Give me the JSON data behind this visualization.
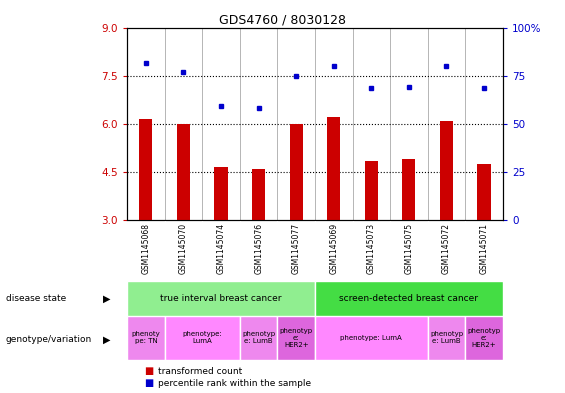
{
  "title": "GDS4760 / 8030128",
  "samples": [
    "GSM1145068",
    "GSM1145070",
    "GSM1145074",
    "GSM1145076",
    "GSM1145077",
    "GSM1145069",
    "GSM1145073",
    "GSM1145075",
    "GSM1145072",
    "GSM1145071"
  ],
  "bar_values": [
    6.15,
    6.0,
    4.65,
    4.6,
    6.0,
    6.2,
    4.85,
    4.9,
    6.1,
    4.75
  ],
  "dot_values": [
    7.9,
    7.6,
    6.55,
    6.5,
    7.5,
    7.8,
    7.1,
    7.15,
    7.8,
    7.1
  ],
  "ylim": [
    3,
    9
  ],
  "yticks": [
    3,
    4.5,
    6,
    7.5,
    9
  ],
  "y2ticks": [
    0,
    25,
    50,
    75,
    100
  ],
  "bar_color": "#CC0000",
  "dot_color": "#0000CC",
  "disease_state_row": [
    {
      "label": "true interval breast cancer",
      "color": "#90EE90",
      "span": [
        0,
        5
      ]
    },
    {
      "label": "screen-detected breast cancer",
      "color": "#44DD44",
      "span": [
        5,
        10
      ]
    }
  ],
  "genotype_row": [
    {
      "label": "phenoty\npe: TN",
      "color": "#EE88EE",
      "span": [
        0,
        1
      ]
    },
    {
      "label": "phenotype:\nLumA",
      "color": "#FF88FF",
      "span": [
        1,
        3
      ]
    },
    {
      "label": "phenotyp\ne: LumB",
      "color": "#EE88EE",
      "span": [
        3,
        4
      ]
    },
    {
      "label": "phenotyp\ne:\nHER2+",
      "color": "#DD66DD",
      "span": [
        4,
        5
      ]
    },
    {
      "label": "phenotype: LumA",
      "color": "#FF88FF",
      "span": [
        5,
        8
      ]
    },
    {
      "label": "phenotyp\ne: LumB",
      "color": "#EE88EE",
      "span": [
        8,
        9
      ]
    },
    {
      "label": "phenotyp\ne:\nHER2+",
      "color": "#DD66DD",
      "span": [
        9,
        10
      ]
    }
  ],
  "legend_bar_label": "transformed count",
  "legend_dot_label": "percentile rank within the sample",
  "left_label_disease": "disease state",
  "left_label_genotype": "genotype/variation",
  "xtick_bg_color": "#C8C8C8",
  "background_color": "#FFFFFF",
  "bar_width": 0.35
}
